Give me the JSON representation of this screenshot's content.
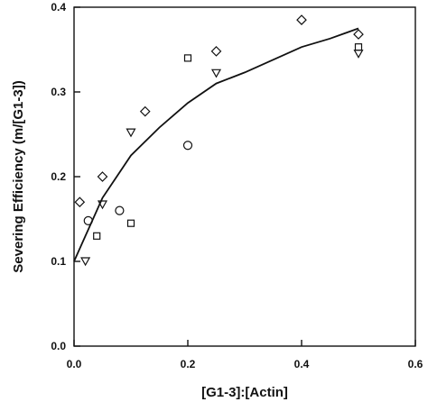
{
  "chart_data": {
    "type": "scatter",
    "title": "",
    "xlabel": "[G1-3]:[Actin]",
    "ylabel": "Severing Efficiency (m/[G1-3])",
    "xlim": [
      0.0,
      0.6
    ],
    "ylim": [
      0.0,
      0.4
    ],
    "x_ticks": [
      "0.0",
      "0.2",
      "0.4",
      "0.6"
    ],
    "y_ticks": [
      "0.0",
      "0.1",
      "0.2",
      "0.3",
      "0.4"
    ],
    "x_tick_values": [
      0.0,
      0.2,
      0.4,
      0.6
    ],
    "y_tick_values": [
      0.0,
      0.1,
      0.2,
      0.3,
      0.4
    ],
    "grid": false,
    "legend": "none",
    "series": [
      {
        "marker": "diamond",
        "points": [
          [
            0.01,
            0.17
          ],
          [
            0.05,
            0.2
          ],
          [
            0.125,
            0.277
          ],
          [
            0.25,
            0.348
          ],
          [
            0.4,
            0.385
          ],
          [
            0.5,
            0.368
          ]
        ]
      },
      {
        "marker": "square",
        "points": [
          [
            0.04,
            0.13
          ],
          [
            0.1,
            0.145
          ],
          [
            0.2,
            0.34
          ],
          [
            0.5,
            0.353
          ]
        ]
      },
      {
        "marker": "triangle-down",
        "points": [
          [
            0.02,
            0.1
          ],
          [
            0.05,
            0.167
          ],
          [
            0.1,
            0.252
          ],
          [
            0.25,
            0.322
          ],
          [
            0.5,
            0.345
          ]
        ]
      },
      {
        "marker": "circle",
        "points": [
          [
            0.025,
            0.148
          ],
          [
            0.08,
            0.16
          ],
          [
            0.2,
            0.237
          ]
        ]
      }
    ],
    "fit_curve": {
      "x": [
        0.0,
        0.02,
        0.05,
        0.1,
        0.15,
        0.2,
        0.25,
        0.3,
        0.35,
        0.4,
        0.45,
        0.5
      ],
      "y": [
        0.1,
        0.13,
        0.175,
        0.225,
        0.258,
        0.287,
        0.31,
        0.323,
        0.338,
        0.353,
        0.363,
        0.375
      ]
    }
  }
}
